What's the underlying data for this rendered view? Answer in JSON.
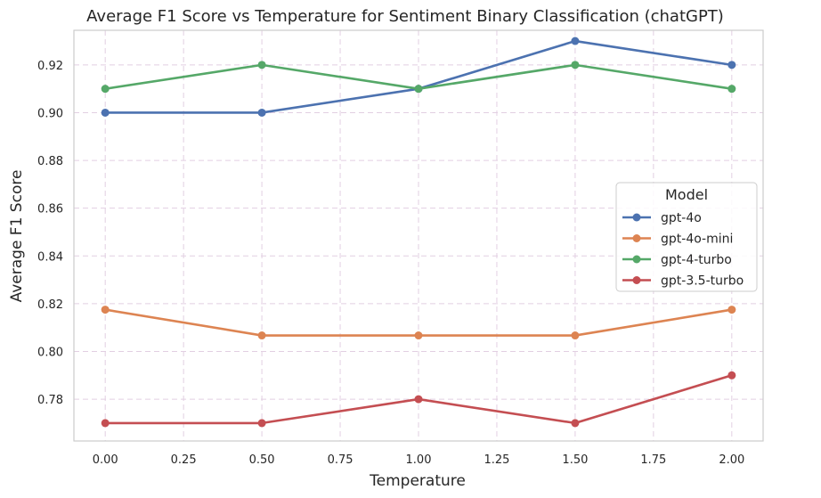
{
  "chart_data": {
    "type": "line",
    "title": "Average F1 Score vs Temperature for Sentiment Binary Classification (chatGPT)",
    "xlabel": "Temperature",
    "ylabel": "Average F1 Score",
    "x": [
      0.0,
      0.5,
      1.0,
      1.5,
      2.0
    ],
    "xlim": [
      -0.1,
      2.1
    ],
    "ylim": [
      0.7625,
      0.9345
    ],
    "xticks": [
      0.0,
      0.25,
      0.5,
      0.75,
      1.0,
      1.25,
      1.5,
      1.75,
      2.0
    ],
    "xtick_labels": [
      "0.00",
      "0.25",
      "0.50",
      "0.75",
      "1.00",
      "1.25",
      "1.50",
      "1.75",
      "2.00"
    ],
    "yticks": [
      0.78,
      0.8,
      0.82,
      0.84,
      0.86,
      0.88,
      0.9,
      0.92
    ],
    "ytick_labels": [
      "0.78",
      "0.80",
      "0.82",
      "0.84",
      "0.86",
      "0.88",
      "0.90",
      "0.92"
    ],
    "grid": true,
    "legend": {
      "title": "Model",
      "placement": "center-right"
    },
    "series": [
      {
        "name": "gpt-4o",
        "color": "#4c72b0",
        "values": [
          0.9,
          0.9,
          0.91,
          0.93,
          0.92
        ]
      },
      {
        "name": "gpt-4o-mini",
        "color": "#dd8452",
        "values": [
          0.8175,
          0.8067,
          0.8067,
          0.8067,
          0.8175
        ]
      },
      {
        "name": "gpt-4-turbo",
        "color": "#55a868",
        "values": [
          0.91,
          0.92,
          0.91,
          0.92,
          0.91
        ]
      },
      {
        "name": "gpt-3.5-turbo",
        "color": "#c44e52",
        "values": [
          0.77,
          0.77,
          0.78,
          0.77,
          0.79
        ]
      }
    ]
  }
}
